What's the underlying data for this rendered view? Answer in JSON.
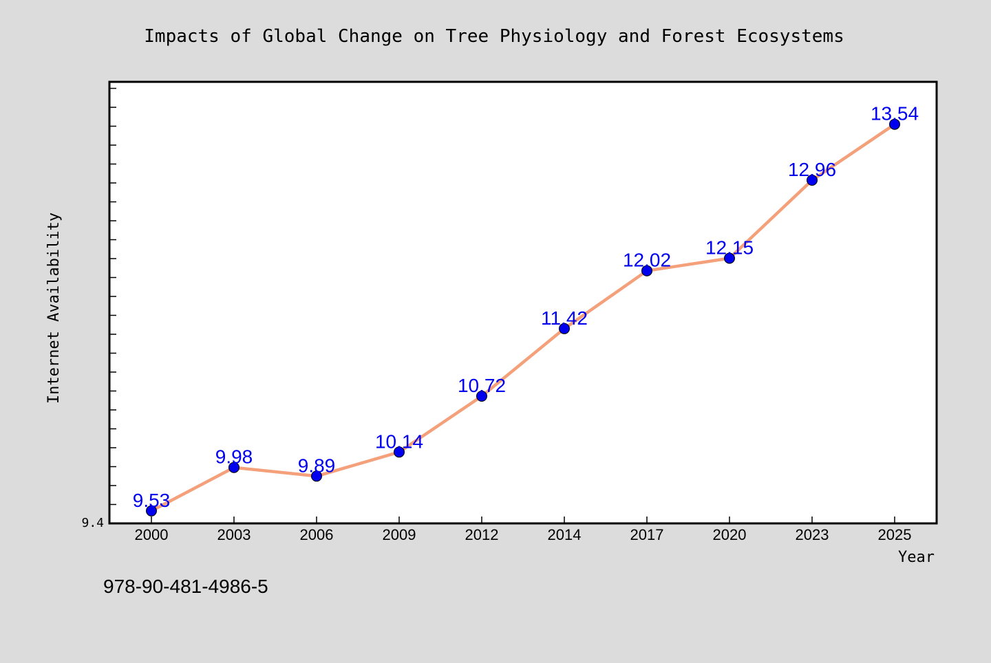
{
  "chart_data": {
    "type": "line",
    "title": "Impacts of Global Change on Tree Physiology and Forest Ecosystems",
    "xlabel": "Year",
    "ylabel": "Internet Availability",
    "categories": [
      "2000",
      "2003",
      "2006",
      "2009",
      "2012",
      "2014",
      "2017",
      "2020",
      "2023",
      "2025"
    ],
    "series": [
      {
        "values": [
          9.53,
          9.98,
          9.89,
          10.14,
          10.72,
          11.42,
          12.02,
          12.15,
          12.96,
          13.54
        ],
        "line_color": "#f4a07a",
        "marker_color": "#0000ee",
        "label_color": "#0000ee"
      }
    ],
    "ylim": [
      9.4,
      13.98
    ],
    "y_tick_labels": [
      "9.4"
    ],
    "grid": false,
    "legend": "none",
    "data_labels": [
      "9.53",
      "9.98",
      "9.89",
      "10.14",
      "10.72",
      "11.42",
      "12.02",
      "12.15",
      "12.96",
      "13.54"
    ]
  },
  "footer": {
    "isbn": "978-90-481-4986-5"
  }
}
